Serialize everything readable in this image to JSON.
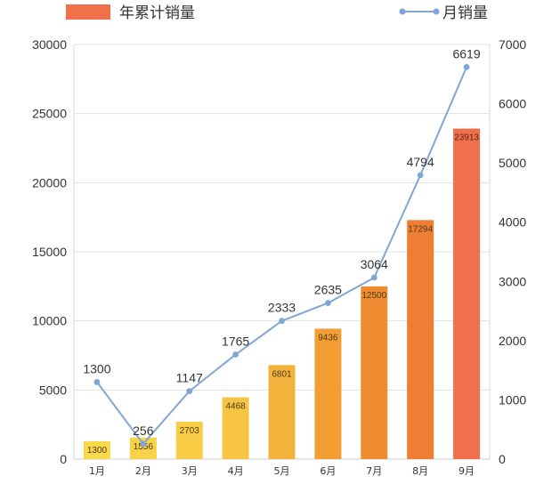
{
  "chart_data": {
    "type": "bar",
    "categories": [
      "1月",
      "2月",
      "3月",
      "4月",
      "5月",
      "6月",
      "7月",
      "8月",
      "9月"
    ],
    "series": [
      {
        "name": "年累计销量",
        "type": "bar",
        "axis": "left",
        "values": [
          1300,
          1556,
          2703,
          4468,
          6801,
          9436,
          12500,
          17294,
          23913
        ],
        "colors": [
          "#F9D94A",
          "#F9D347",
          "#F8CD45",
          "#F6C343",
          "#F3B23B",
          "#F29E33",
          "#EF8C31",
          "#EE7E34",
          "#F0704C"
        ]
      },
      {
        "name": "月销量",
        "type": "line",
        "axis": "right",
        "values": [
          1300,
          256,
          1147,
          1765,
          2333,
          2635,
          3064,
          4794,
          6619
        ],
        "color": "#7FA6D6"
      }
    ],
    "y_left": {
      "min": 0,
      "max": 30000,
      "ticks": [
        "0",
        "5000",
        "10000",
        "15000",
        "20000",
        "25000",
        "30000"
      ]
    },
    "y_right": {
      "min": 0,
      "max": 7000,
      "ticks": [
        "0",
        "1000",
        "2000",
        "3000",
        "4000",
        "5000",
        "6000",
        "7000"
      ]
    },
    "legend_position": "top",
    "grid": true
  }
}
